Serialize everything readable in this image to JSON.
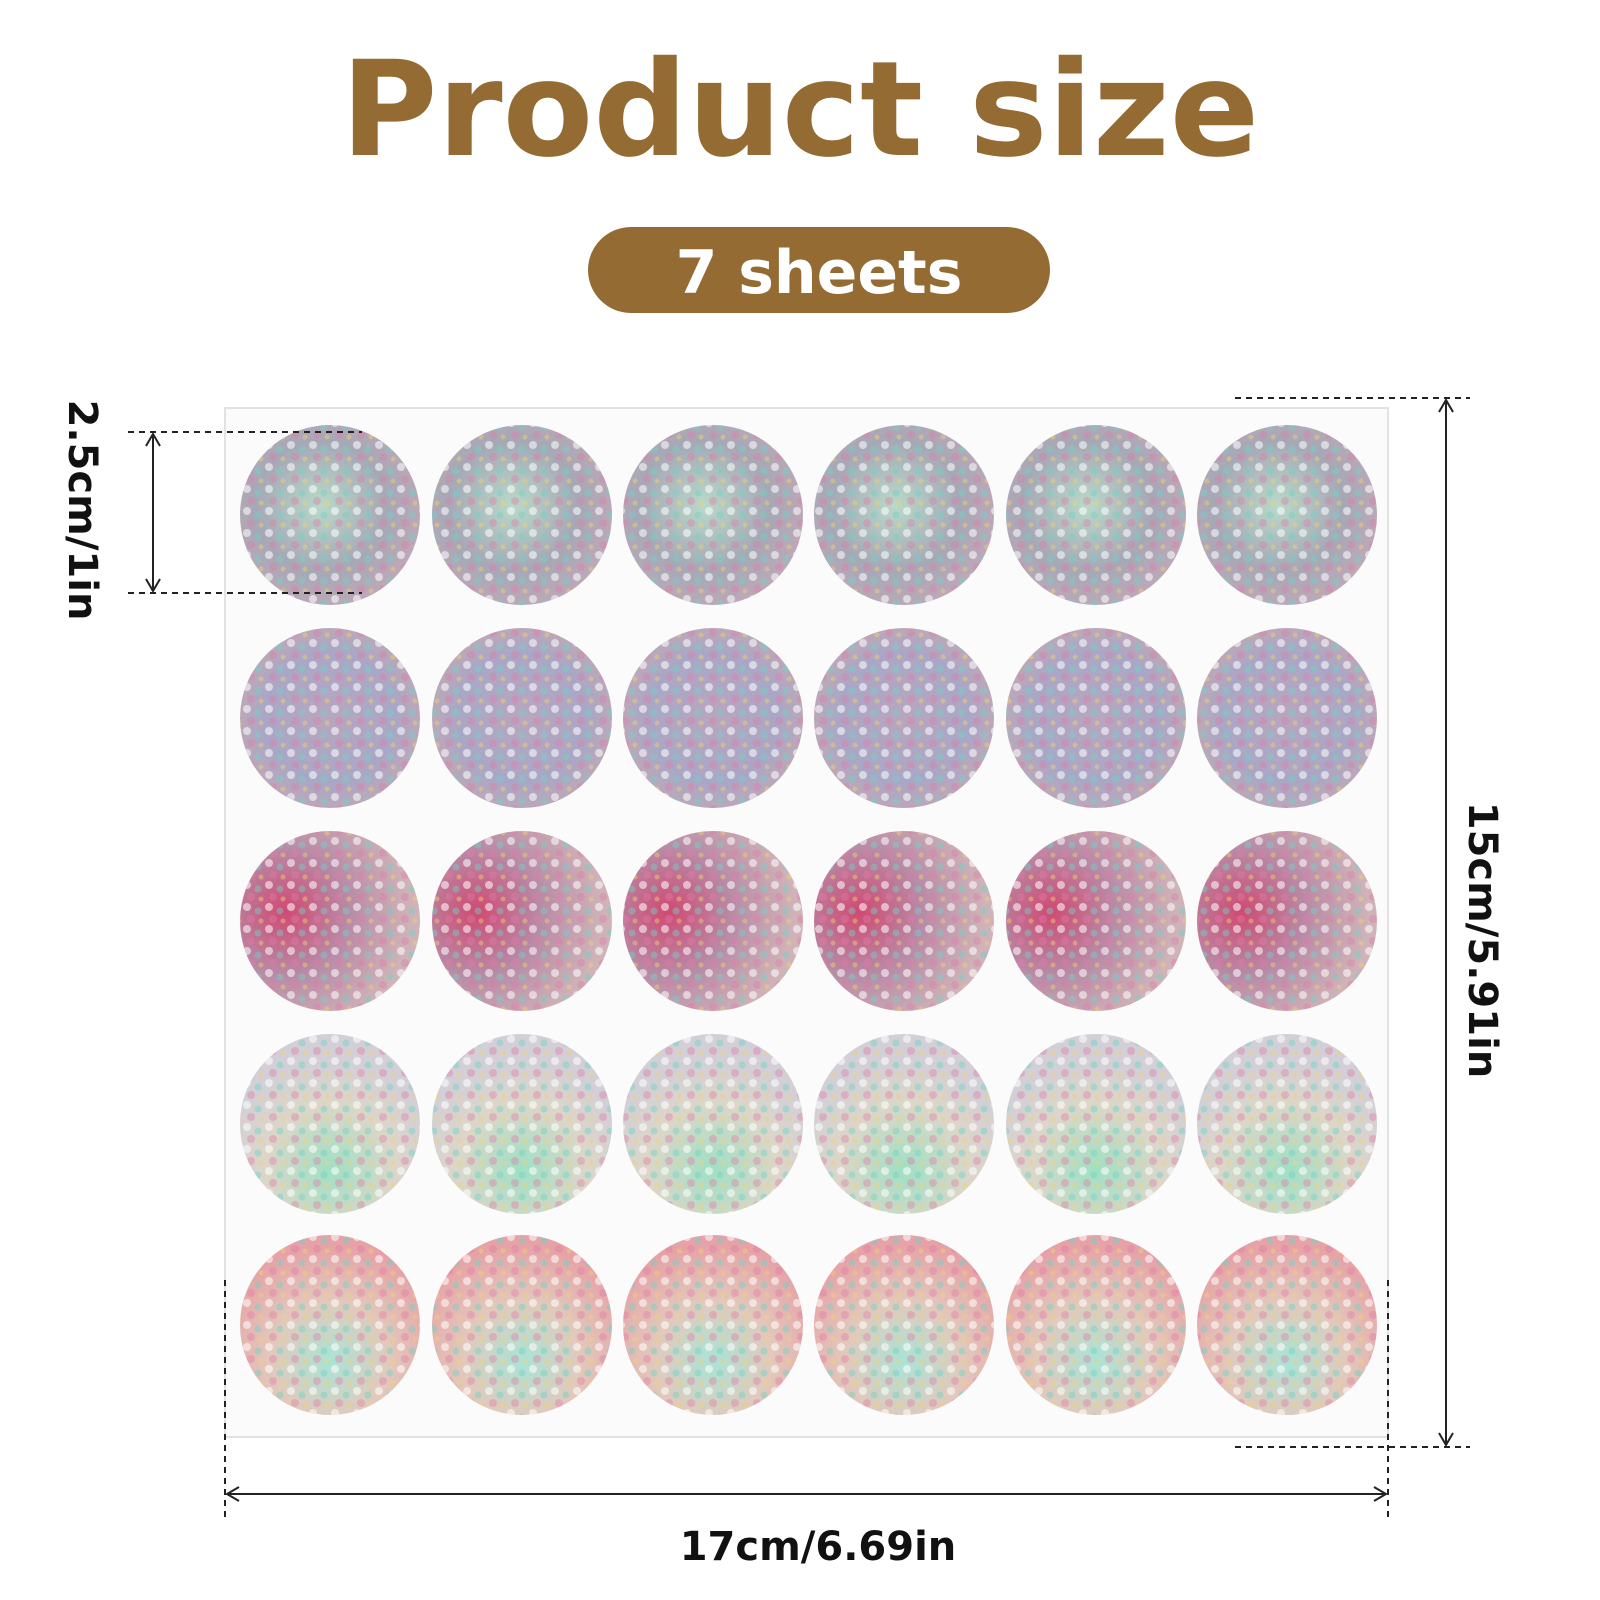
{
  "header": {
    "title": "Product size",
    "badge": "7 sheets"
  },
  "dimensions": {
    "sticker_diameter": "2.5cm/1in",
    "sheet_height": "15cm/5.91in",
    "sheet_width": "17cm/6.69in"
  }
}
